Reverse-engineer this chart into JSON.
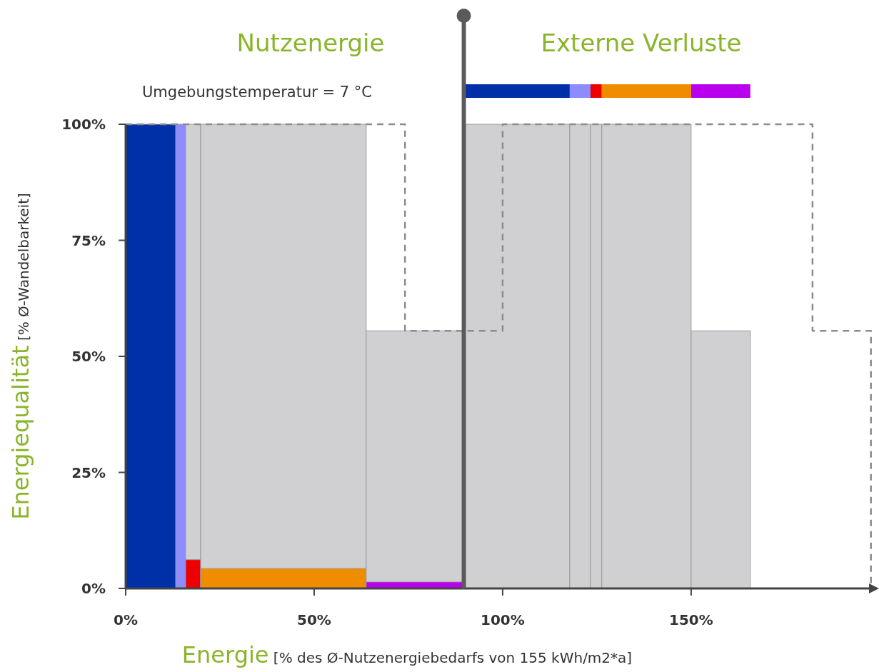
{
  "chart_data": {
    "type": "area",
    "xlabel": "Energie [% des Ø-Nutzenergiebedarfs von 155 kWh/m2*a]",
    "ylabel": "Energiequalität [% Ø-Wandelbarkeit]",
    "annotations": [
      "Nutzenergie",
      "Externe Verluste",
      "Umgebungstemperatur =  7 °C"
    ],
    "xlim": [
      0,
      198.7
    ],
    "xticks": [
      {
        "value": 0,
        "label": "0%"
      },
      {
        "value": 50,
        "label": "50%"
      },
      {
        "value": 100,
        "label": "100%"
      },
      {
        "value": 150,
        "label": "150%"
      }
    ],
    "ylim": [
      0,
      100
    ],
    "yticks": [
      {
        "value": 0,
        "label": "0%"
      },
      {
        "value": 25,
        "label": "25%"
      },
      {
        "value": 50,
        "label": "50%"
      },
      {
        "value": 75,
        "label": "75%"
      },
      {
        "value": 100,
        "label": "100%"
      }
    ],
    "ref_lines": [
      {
        "axis": "x",
        "value": 89.7,
        "color": "#5a5a5a"
      }
    ],
    "series": [
      {
        "color": "#0030a8",
        "x": [
          0,
          13.3
        ],
        "values": [
          100,
          100
        ]
      },
      {
        "color": "#8c8cff",
        "x": [
          13.3,
          15.9
        ],
        "values": [
          100,
          100
        ]
      },
      {
        "color": "#d0d0d2",
        "x": [
          15.9,
          19.9
        ],
        "values": [
          100,
          100
        ]
      },
      {
        "color": "#ee0000",
        "x": [
          15.9,
          19.9
        ],
        "values": [
          6.2,
          6.2
        ]
      },
      {
        "color": "#d0d0d2",
        "x": [
          19.9,
          63.8
        ],
        "values": [
          100,
          100
        ]
      },
      {
        "color": "#f08c00",
        "x": [
          19.9,
          63.8
        ],
        "values": [
          4.3,
          4.3
        ]
      },
      {
        "color": "#d0d0d2",
        "x": [
          63.8,
          89.7
        ],
        "values": [
          55.5,
          55.5
        ]
      },
      {
        "color": "#b800ee",
        "x": [
          63.8,
          89.7
        ],
        "values": [
          1.4,
          1.4
        ]
      },
      {
        "color": "#d0d0d2",
        "x": [
          89.7,
          117.8
        ],
        "values": [
          100,
          100
        ]
      },
      {
        "color": "#d0d0d2",
        "x": [
          117.8,
          123.3
        ],
        "values": [
          100,
          100
        ]
      },
      {
        "color": "#d0d0d2",
        "x": [
          123.3,
          126.3
        ],
        "values": [
          100,
          100
        ]
      },
      {
        "color": "#d0d0d2",
        "x": [
          126.3,
          150
        ],
        "values": [
          100,
          100
        ]
      },
      {
        "color": "#d0d0d2",
        "x": [
          150,
          165.7
        ],
        "values": [
          55.5,
          55.5
        ]
      },
      {
        "type": "line",
        "line_style": "dashed",
        "color": "#8c8c8c",
        "x": [
          0,
          74.1,
          74.1,
          100,
          100,
          182.2,
          182.2,
          197.7,
          197.7
        ],
        "values": [
          100,
          100,
          55.5,
          55.5,
          100,
          100,
          55.5,
          55.5,
          0
        ]
      }
    ]
  }
}
